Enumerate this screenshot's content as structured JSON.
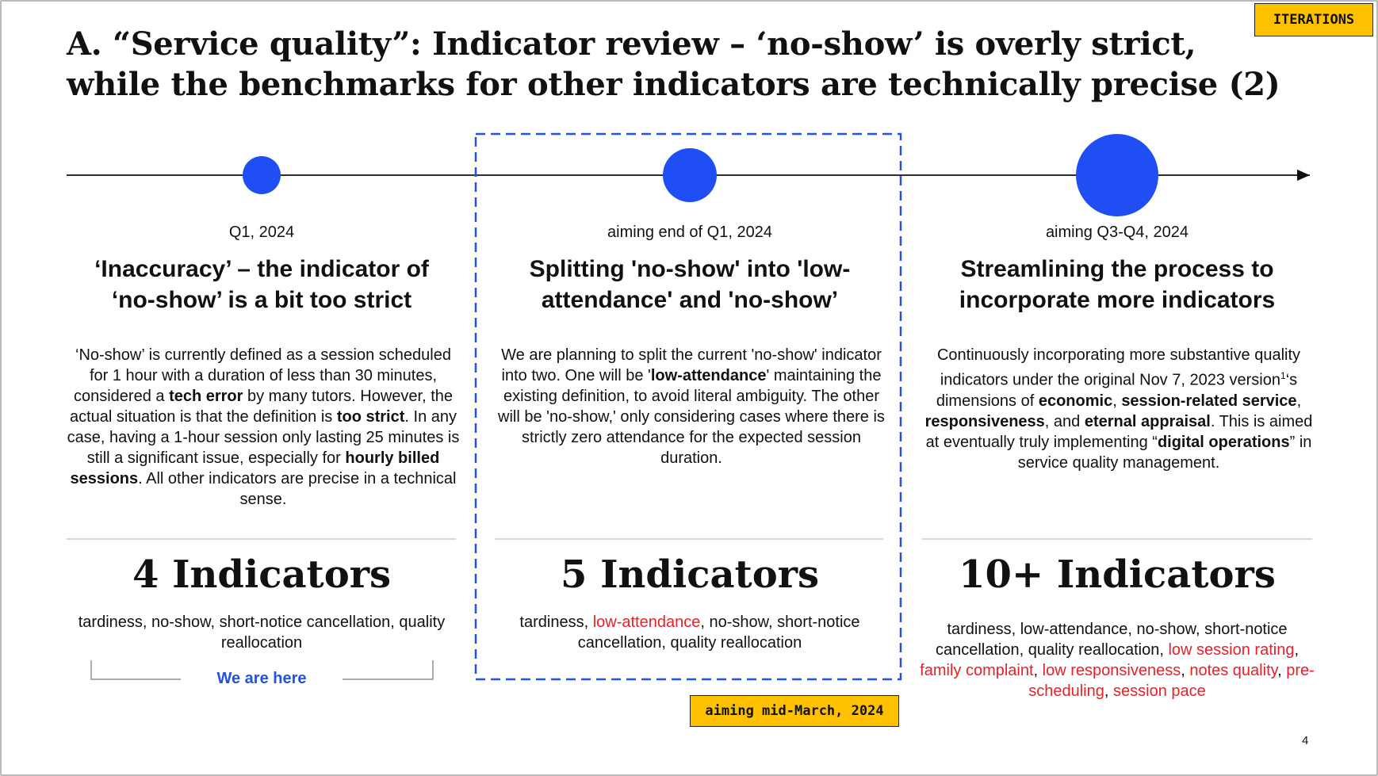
{
  "tag": "ITERATIONS",
  "title": [
    "A. “Service quality”: Indicator review – ‘no-show’ is overly strict,",
    "while the benchmarks for other indicators are technically precise (2)"
  ],
  "columns": [
    {
      "date": "Q1, 2024",
      "heading": [
        "‘Inaccuracy’ – the indicator of",
        "‘no-show’ is a bit too strict"
      ],
      "body": [
        {
          "text": "‘No-show’ is currently defined as a session scheduled for 1 hour with a duration of less than 30 minutes, considered a "
        },
        {
          "text": "tech error",
          "bold": true
        },
        {
          "text": " by many tutors. However, the actual situation is that the definition is "
        },
        {
          "text": "too strict",
          "bold": true
        },
        {
          "text": ". In any case, having a 1-hour session only lasting 25 minutes is still a significant issue, especially for "
        },
        {
          "text": "hourly billed sessions",
          "bold": true
        },
        {
          "text": ". All other indicators are precise in a technical sense."
        }
      ],
      "count": "4 Indicators",
      "indicators": [
        {
          "text": "tardiness, no-show, short-notice cancellation, quality reallocation"
        }
      ]
    },
    {
      "date": "aiming end of Q1, 2024",
      "heading": [
        "Splitting 'no-show' into 'low-",
        "attendance' and 'no-show’"
      ],
      "body": [
        {
          "text": "We are planning to split the current 'no-show' indicator into two. One will be '"
        },
        {
          "text": "low-attendance",
          "bold": true
        },
        {
          "text": "' maintaining the existing definition, to avoid literal ambiguity. The other will be 'no-show,' only considering cases where there is strictly zero attendance for the expected session duration."
        }
      ],
      "count": "5 Indicators",
      "indicators": [
        {
          "text": "tardiness, "
        },
        {
          "text": "low-attendance",
          "new": true
        },
        {
          "text": ", no-show, short-notice cancellation, quality reallocation"
        }
      ]
    },
    {
      "date": "aiming Q3-Q4, 2024",
      "heading": [
        "Streamlining the process to",
        "incorporate more indicators"
      ],
      "body": [
        {
          "text": "Continuously incorporating more substantive quality indicators under the original Nov 7, 2023 version"
        },
        {
          "text": "1",
          "sup": true
        },
        {
          "text": "‘s dimensions of "
        },
        {
          "text": "economic",
          "bold": true
        },
        {
          "text": ", "
        },
        {
          "text": "session-related service",
          "bold": true
        },
        {
          "text": ", "
        },
        {
          "text": "responsiveness",
          "bold": true
        },
        {
          "text": ", and "
        },
        {
          "text": "eternal appraisal",
          "bold": true
        },
        {
          "text": ". This is aimed at eventually truly implementing “"
        },
        {
          "text": "digital operations",
          "bold": true
        },
        {
          "text": "” in service quality management."
        }
      ],
      "count": "10+ Indicators",
      "indicators": [
        {
          "text": "tardiness, low-attendance, no-show, short-notice cancellation, quality reallocation, "
        },
        {
          "text": "low session rating",
          "new": true
        },
        {
          "text": ", "
        },
        {
          "text": "family complaint",
          "new": true
        },
        {
          "text": ", "
        },
        {
          "text": "low responsiveness",
          "new": true
        },
        {
          "text": ", "
        },
        {
          "text": "notes quality",
          "new": true
        },
        {
          "text": ", "
        },
        {
          "text": "pre-scheduling",
          "new": true
        },
        {
          "text": ", "
        },
        {
          "text": "session pace",
          "new": true
        }
      ]
    }
  ],
  "we_are_here": "We are here",
  "milestone": "aiming mid-March, 2024",
  "page_number": "4"
}
